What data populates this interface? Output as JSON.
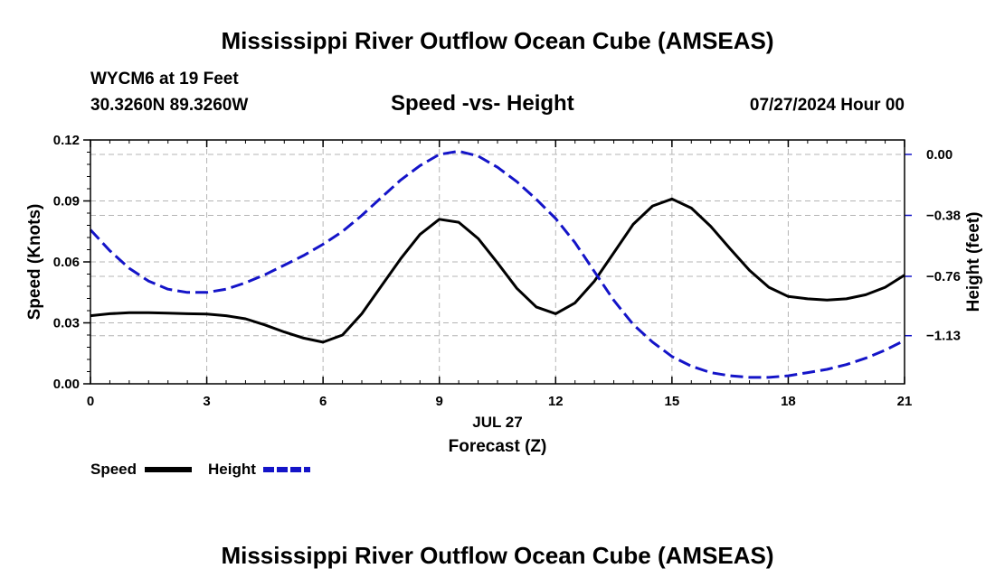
{
  "page": {
    "title": "Mississippi River Outflow Ocean Cube (AMSEAS)",
    "footer_title": "Mississippi River Outflow Ocean Cube (AMSEAS)",
    "station": "WYCM6 at 19 Feet",
    "coords": "30.3260N  89.3260W",
    "subtitle": "Speed -vs- Height",
    "datetime": "07/27/2024 Hour 00"
  },
  "legend": {
    "speed_label": "Speed",
    "height_label": "Height"
  },
  "colors": {
    "speed": "#000000",
    "height": "#1414c8",
    "grid": "#b4b4b4"
  },
  "chart_data": {
    "type": "line",
    "title": "Speed -vs- Height",
    "xlabel": "Forecast (Z)",
    "xlabel_date": "JUL 27",
    "ylabel": "Speed (Knots)",
    "y2label": "Height (feet)",
    "xlim": [
      0,
      21
    ],
    "ylim": [
      0,
      0.12
    ],
    "y2lim": [
      -1.43,
      0.09
    ],
    "x_ticks": [
      0,
      3,
      6,
      9,
      12,
      15,
      18,
      21
    ],
    "x_tick_labels": [
      "0",
      "3",
      "6",
      "9",
      "12",
      "15",
      "18",
      "21"
    ],
    "y_ticks": [
      0,
      0.03,
      0.06,
      0.09,
      0.12
    ],
    "y_tick_labels": [
      "0.00",
      "0.03",
      "0.06",
      "0.09",
      "0.12"
    ],
    "y2_ticks": [
      0,
      -0.38,
      -0.76,
      -1.13
    ],
    "y2_tick_labels": [
      "0.00",
      "−0.38",
      "−0.76",
      "−1.13"
    ],
    "series": [
      {
        "name": "Speed",
        "axis": "left",
        "style": "solid",
        "x": [
          0,
          0.5,
          1,
          1.5,
          2,
          2.5,
          3,
          3.5,
          4,
          4.5,
          5,
          5.5,
          6,
          6.5,
          7,
          7.5,
          8,
          8.5,
          9,
          9.5,
          10,
          10.5,
          11,
          11.5,
          12,
          12.5,
          13,
          13.5,
          14,
          14.5,
          15,
          15.5,
          16,
          16.5,
          17,
          17.5,
          18,
          18.5,
          19,
          19.5,
          20,
          20.5,
          21
        ],
        "values": [
          0.0335,
          0.0345,
          0.035,
          0.035,
          0.0348,
          0.0345,
          0.0343,
          0.0335,
          0.032,
          0.029,
          0.0255,
          0.0225,
          0.0205,
          0.024,
          0.0345,
          0.048,
          0.0615,
          0.0735,
          0.081,
          0.0795,
          0.0715,
          0.0595,
          0.047,
          0.0378,
          0.0345,
          0.0398,
          0.0505,
          0.0645,
          0.0785,
          0.0875,
          0.091,
          0.0865,
          0.0775,
          0.0665,
          0.0558,
          0.0475,
          0.043,
          0.0418,
          0.0412,
          0.0418,
          0.0438,
          0.0475,
          0.0535
        ]
      },
      {
        "name": "Height",
        "axis": "right",
        "style": "dashed",
        "x": [
          0,
          0.5,
          1,
          1.5,
          2,
          2.5,
          3,
          3.5,
          4,
          4.5,
          5,
          5.5,
          6,
          6.5,
          7,
          7.5,
          8,
          8.5,
          9,
          9.5,
          10,
          10.5,
          11,
          11.5,
          12,
          12.5,
          13,
          13.5,
          14,
          14.5,
          15,
          15.5,
          16,
          16.5,
          17,
          17.5,
          18,
          18.5,
          19,
          19.5,
          20,
          20.5,
          21
        ],
        "values": [
          -0.47,
          -0.6,
          -0.71,
          -0.79,
          -0.84,
          -0.86,
          -0.86,
          -0.84,
          -0.8,
          -0.75,
          -0.69,
          -0.63,
          -0.56,
          -0.48,
          -0.38,
          -0.27,
          -0.16,
          -0.07,
          0.0,
          0.02,
          -0.01,
          -0.08,
          -0.17,
          -0.28,
          -0.4,
          -0.55,
          -0.73,
          -0.91,
          -1.06,
          -1.17,
          -1.26,
          -1.32,
          -1.36,
          -1.38,
          -1.39,
          -1.39,
          -1.38,
          -1.36,
          -1.34,
          -1.31,
          -1.27,
          -1.22,
          -1.16
        ]
      }
    ]
  }
}
